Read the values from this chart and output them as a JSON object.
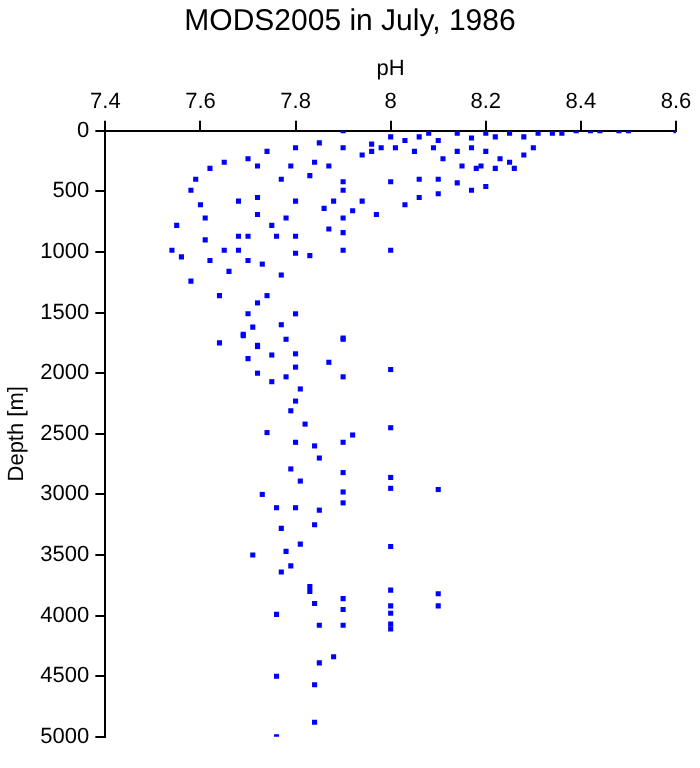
{
  "chart_data": {
    "type": "scatter",
    "title": "MODS2005 in July, 1986",
    "xlabel": "pH",
    "ylabel": "Depth [m]",
    "xlim": [
      7.4,
      8.6
    ],
    "xticks": [
      7.4,
      7.6,
      7.8,
      8,
      8.2,
      8.4,
      8.6
    ],
    "ylim": [
      5000,
      0
    ],
    "yticks": [
      0,
      500,
      1000,
      1500,
      2000,
      2500,
      3000,
      3500,
      4000,
      4500,
      5000
    ],
    "grid": false,
    "legend": false,
    "marker": "square",
    "series": [
      {
        "color": "#0000ff",
        "x": [
          7.9,
          8.0,
          8.03,
          8.06,
          8.08,
          8.1,
          8.14,
          8.17,
          8.2,
          8.22,
          8.25,
          8.28,
          8.31,
          8.34,
          8.36,
          8.39,
          8.42,
          8.44,
          8.48,
          8.5,
          8.6,
          7.96,
          7.98,
          8.01,
          8.05,
          8.09,
          8.11,
          8.14,
          8.17,
          8.2,
          8.23,
          8.25,
          8.28,
          8.3,
          8.19,
          8.22,
          8.26,
          8.18,
          8.15,
          8.06,
          8.1,
          8.14,
          8.2,
          8.17,
          8.1,
          8.06,
          8.03,
          8.0,
          7.97,
          7.94,
          7.92,
          7.9,
          7.9,
          7.88,
          7.86,
          7.85,
          7.87,
          7.9,
          7.94,
          7.96,
          7.84,
          7.83,
          7.8,
          7.79,
          7.77,
          7.74,
          7.72,
          7.7,
          7.65,
          7.62,
          7.59,
          7.58,
          7.6,
          7.61,
          7.55,
          7.54,
          7.56,
          7.58,
          7.61,
          7.62,
          7.64,
          7.65,
          7.66,
          7.68,
          7.68,
          7.68,
          7.7,
          7.7,
          7.72,
          7.72,
          7.73,
          7.75,
          7.76,
          7.77,
          7.78,
          7.8,
          7.8,
          7.8,
          7.83,
          7.87,
          7.9,
          7.9,
          7.9,
          8.0,
          7.8,
          7.77,
          7.74,
          7.72,
          7.7,
          7.69,
          7.72,
          7.9,
          7.64,
          7.69,
          7.71,
          7.78,
          7.72,
          7.7,
          7.75,
          7.8,
          7.8,
          7.72,
          7.75,
          7.78,
          7.81,
          7.8,
          7.79,
          7.82,
          7.9,
          7.9,
          7.87,
          8.0,
          7.74,
          7.8,
          7.84,
          7.85,
          7.92,
          7.9,
          8.0,
          7.79,
          7.81,
          7.9,
          7.9,
          7.9,
          8.0,
          8.0,
          8.1,
          7.73,
          7.76,
          7.8,
          7.85,
          7.77,
          7.84,
          7.81,
          8.0,
          7.71,
          7.78,
          7.79,
          7.77,
          7.83,
          7.83,
          7.9,
          7.9,
          7.84,
          8.0,
          8.0,
          8.0,
          8.0,
          8.0,
          8.1,
          8.1,
          7.76,
          7.85,
          7.9,
          7.88,
          7.85,
          7.76,
          7.84,
          7.84,
          7.76
        ],
        "values": [
          0,
          50,
          80,
          50,
          20,
          80,
          20,
          60,
          20,
          50,
          20,
          50,
          20,
          20,
          20,
          0,
          0,
          0,
          0,
          0,
          0,
          110,
          140,
          140,
          170,
          140,
          230,
          170,
          140,
          170,
          230,
          260,
          200,
          140,
          290,
          310,
          310,
          310,
          290,
          400,
          400,
          430,
          460,
          490,
          520,
          550,
          610,
          420,
          690,
          580,
          660,
          420,
          490,
          580,
          640,
          100,
          290,
          140,
          200,
          170,
          260,
          370,
          140,
          290,
          400,
          170,
          290,
          230,
          260,
          310,
          400,
          490,
          610,
          720,
          780,
          985,
          1040,
          1240,
          900,
          1070,
          1360,
          985,
          1160,
          870,
          580,
          985,
          1070,
          870,
          550,
          690,
          1100,
          780,
          870,
          1190,
          720,
          580,
          870,
          1010,
          1030,
          810,
          720,
          840,
          985,
          985,
          1510,
          1600,
          1360,
          1420,
          1510,
          1690,
          1770,
          1710,
          1750,
          1680,
          1620,
          1720,
          1780,
          1880,
          1850,
          1840,
          1950,
          2000,
          2070,
          2030,
          2130,
          2230,
          2310,
          2420,
          1720,
          2030,
          1910,
          1970,
          2490,
          2570,
          2600,
          2700,
          2510,
          2570,
          2450,
          2790,
          2890,
          2820,
          2980,
          3070,
          2860,
          2950,
          2960,
          3000,
          3110,
          3110,
          3130,
          3280,
          3250,
          3410,
          3430,
          3500,
          3470,
          3590,
          3640,
          3760,
          3800,
          3860,
          3950,
          3900,
          3790,
          3920,
          3980,
          4070,
          4110,
          3820,
          3920,
          3990,
          4080,
          4080,
          4340,
          4390,
          4500,
          4570,
          4880,
          5000
        ]
      }
    ]
  }
}
